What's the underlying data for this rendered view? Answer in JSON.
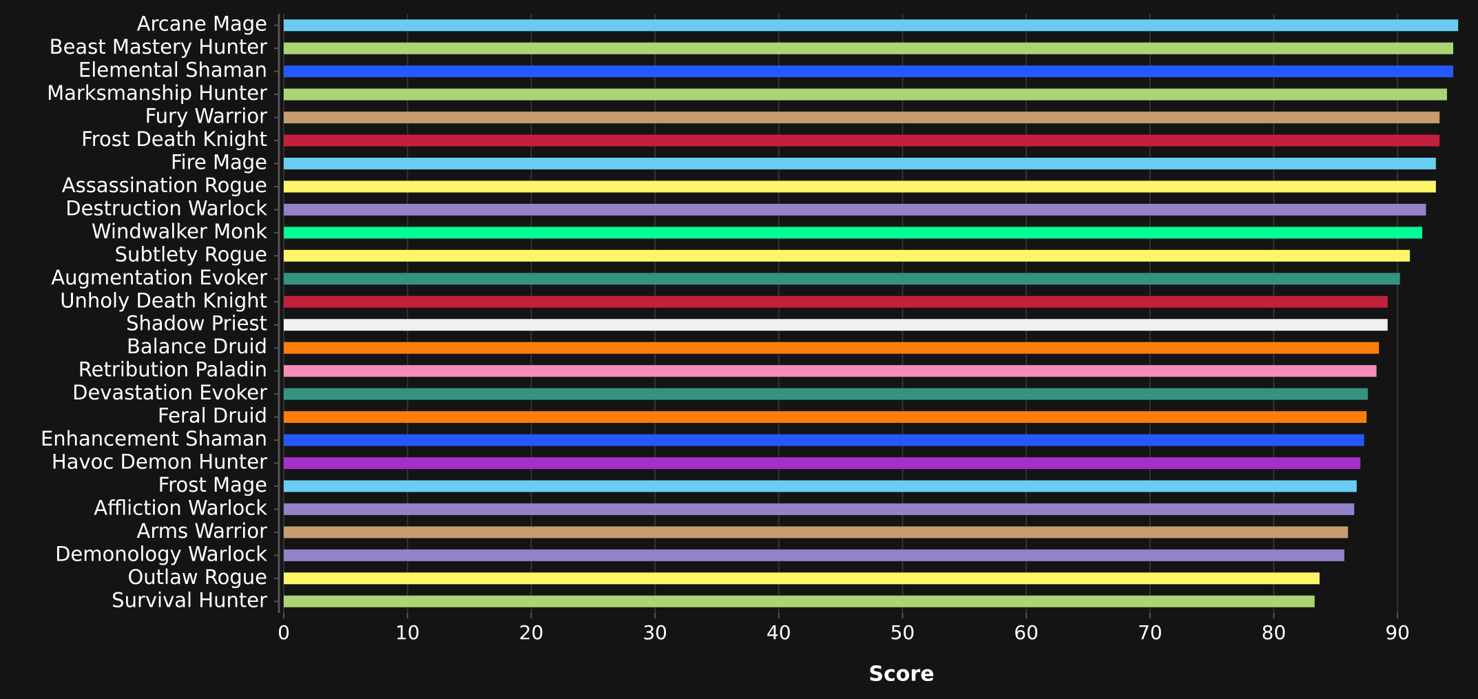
{
  "chart_data": {
    "type": "barh",
    "x_label": "Score",
    "categories": [
      "Arcane Mage",
      "Beast Mastery Hunter",
      "Elemental Shaman",
      "Marksmanship Hunter",
      "Fury Warrior",
      "Frost Death Knight",
      "Fire Mage",
      "Assassination Rogue",
      "Destruction Warlock",
      "Windwalker Monk",
      "Subtlety Rogue",
      "Augmentation Evoker",
      "Unholy Death Knight",
      "Shadow Priest",
      "Balance Druid",
      "Retribution Paladin",
      "Devastation Evoker",
      "Feral Druid",
      "Enhancement Shaman",
      "Havoc Demon Hunter",
      "Frost Mage",
      "Affliction Warlock",
      "Arms Warrior",
      "Demonology Warlock",
      "Outlaw Rogue",
      "Survival Hunter"
    ],
    "values": [
      94.9,
      94.5,
      94.5,
      94.0,
      93.4,
      93.4,
      93.1,
      93.1,
      92.3,
      92.0,
      91.0,
      90.2,
      89.2,
      89.2,
      88.5,
      88.3,
      87.6,
      87.5,
      87.3,
      87.0,
      86.7,
      86.5,
      86.0,
      85.7,
      83.7,
      83.3
    ],
    "colors": [
      "#69ccf0",
      "#abd473",
      "#2459ff",
      "#abd473",
      "#c79c6e",
      "#c41f3b",
      "#69ccf0",
      "#fff569",
      "#9482c9",
      "#00ff96",
      "#fff569",
      "#33937f",
      "#c41f3b",
      "#f0f0f0",
      "#ff7d0a",
      "#f58cba",
      "#33937f",
      "#ff7d0a",
      "#2459ff",
      "#a330c9",
      "#69ccf0",
      "#9482c9",
      "#c79c6e",
      "#9482c9",
      "#fff569",
      "#abd473"
    ],
    "xlim": [
      0,
      95
    ],
    "xticks": [
      0,
      10,
      20,
      30,
      40,
      50,
      60,
      70,
      80,
      90
    ],
    "grid": true
  }
}
